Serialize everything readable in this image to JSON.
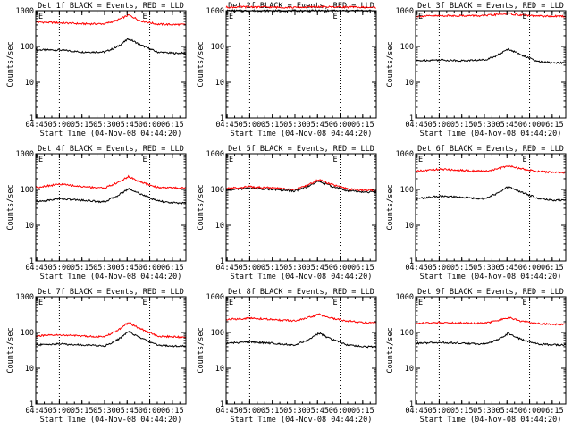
{
  "chart_data": [
    {
      "type": "line",
      "title": "Det 1f BLACK = Events, RED = LLD",
      "xlabel": "Start Time (04-Nov-08 04:44:20)",
      "ylabel": "Counts/sec",
      "x_ticklabels": [
        "04:45",
        "05:00",
        "05:15",
        "05:30",
        "05:45",
        "06:00",
        "06:15"
      ],
      "y_ticklabels": [
        "1",
        "10",
        "100",
        "1000"
      ],
      "marker_labels": [
        "E",
        "E"
      ],
      "yscale": "log",
      "ylim": [
        1,
        1000
      ],
      "xlim": [
        "04:44:20",
        "06:24"
      ],
      "vlines": [
        "05:00",
        "06:00"
      ],
      "series": [
        {
          "color": "#000000",
          "times": [
            "04:45",
            "05:00",
            "05:15",
            "05:30",
            "05:38",
            "05:46",
            "05:54",
            "06:05",
            "06:15",
            "06:23"
          ],
          "values": [
            80,
            80,
            70,
            70,
            95,
            165,
            110,
            70,
            65,
            65
          ]
        },
        {
          "color": "#ff0000",
          "times": [
            "04:45",
            "05:00",
            "05:15",
            "05:30",
            "05:38",
            "05:46",
            "05:54",
            "06:05",
            "06:15",
            "06:23"
          ],
          "values": [
            480,
            460,
            430,
            430,
            530,
            760,
            520,
            420,
            410,
            410
          ]
        }
      ]
    },
    {
      "type": "line",
      "title": "Det 2f BLACK = Events, RED = LLD",
      "xlabel": "Start Time (04-Nov-08 04:44:20)",
      "ylabel": "Counts/sec",
      "x_ticklabels": [
        "04:45",
        "05:00",
        "05:15",
        "05:30",
        "05:45",
        "06:00",
        "06:15"
      ],
      "y_ticklabels": [
        "1",
        "10",
        "100",
        "1000"
      ],
      "marker_labels": [
        "E",
        "E"
      ],
      "yscale": "log",
      "ylim": [
        1,
        1000
      ],
      "xlim": [
        "04:44:20",
        "06:24"
      ],
      "vlines": [
        "05:00",
        "06:00"
      ],
      "series": [
        {
          "color": "#000000",
          "times": [
            "04:45",
            "05:00",
            "05:15",
            "05:30",
            "05:45",
            "06:00",
            "06:15",
            "06:23"
          ],
          "values": [
            1000,
            1000,
            1000,
            1000,
            1000,
            1000,
            1000,
            1000
          ]
        },
        {
          "color": "#ff0000",
          "times": [
            "04:45",
            "05:00",
            "05:15",
            "05:30",
            "05:45",
            "06:00",
            "06:15",
            "06:23"
          ],
          "values": [
            1250,
            1280,
            1250,
            1230,
            1280,
            1270,
            1240,
            1230
          ]
        }
      ]
    },
    {
      "type": "line",
      "title": "Det 3f BLACK = Events, RED = LLD",
      "xlabel": "Start Time (04-Nov-08 04:44:20)",
      "ylabel": "Counts/sec",
      "x_ticklabels": [
        "04:45",
        "05:00",
        "05:15",
        "05:30",
        "05:45",
        "06:00",
        "06:15"
      ],
      "y_ticklabels": [
        "1",
        "10",
        "100",
        "1000"
      ],
      "marker_labels": [
        "E",
        "E"
      ],
      "yscale": "log",
      "ylim": [
        1,
        1000
      ],
      "xlim": [
        "04:44:20",
        "06:24"
      ],
      "vlines": [
        "05:00",
        "06:00"
      ],
      "series": [
        {
          "color": "#000000",
          "times": [
            "04:45",
            "05:00",
            "05:15",
            "05:30",
            "05:38",
            "05:46",
            "05:54",
            "06:05",
            "06:15",
            "06:23"
          ],
          "values": [
            40,
            42,
            40,
            42,
            55,
            85,
            60,
            38,
            35,
            35
          ]
        },
        {
          "color": "#ff0000",
          "times": [
            "04:45",
            "05:00",
            "05:15",
            "05:30",
            "05:38",
            "05:46",
            "05:54",
            "06:05",
            "06:15",
            "06:23"
          ],
          "values": [
            700,
            720,
            730,
            720,
            780,
            830,
            760,
            710,
            700,
            700
          ]
        }
      ]
    },
    {
      "type": "line",
      "title": "Det 4f BLACK = Events, RED = LLD",
      "xlabel": "Start Time (04-Nov-08 04:44:20)",
      "ylabel": "Counts/sec",
      "x_ticklabels": [
        "04:45",
        "05:00",
        "05:15",
        "05:30",
        "05:45",
        "06:00",
        "06:15"
      ],
      "y_ticklabels": [
        "1",
        "10",
        "100",
        "1000"
      ],
      "marker_labels": [
        "E",
        "E"
      ],
      "yscale": "log",
      "ylim": [
        1,
        1000
      ],
      "xlim": [
        "04:44:20",
        "06:24"
      ],
      "vlines": [
        "05:00",
        "06:00"
      ],
      "series": [
        {
          "color": "#000000",
          "times": [
            "04:45",
            "05:00",
            "05:15",
            "05:30",
            "05:38",
            "05:46",
            "05:54",
            "06:05",
            "06:15",
            "06:23"
          ],
          "values": [
            45,
            55,
            50,
            45,
            65,
            105,
            75,
            48,
            42,
            42
          ]
        },
        {
          "color": "#ff0000",
          "times": [
            "04:45",
            "05:00",
            "05:15",
            "05:30",
            "05:38",
            "05:46",
            "05:54",
            "06:05",
            "06:15",
            "06:23"
          ],
          "values": [
            115,
            140,
            120,
            110,
            150,
            230,
            160,
            115,
            110,
            110
          ]
        }
      ]
    },
    {
      "type": "line",
      "title": "Det 5f BLACK = Events, RED = LLD",
      "xlabel": "Start Time (04-Nov-08 04:44:20)",
      "ylabel": "Counts/sec",
      "x_ticklabels": [
        "04:45",
        "05:00",
        "05:15",
        "05:30",
        "05:45",
        "06:00",
        "06:15"
      ],
      "y_ticklabels": [
        "1",
        "10",
        "100",
        "1000"
      ],
      "marker_labels": [
        "E",
        "E"
      ],
      "yscale": "log",
      "ylim": [
        1,
        1000
      ],
      "xlim": [
        "04:44:20",
        "06:24"
      ],
      "vlines": [
        "05:00",
        "06:00"
      ],
      "series": [
        {
          "color": "#000000",
          "times": [
            "04:45",
            "05:00",
            "05:15",
            "05:30",
            "05:38",
            "05:46",
            "05:54",
            "06:05",
            "06:15",
            "06:23"
          ],
          "values": [
            95,
            110,
            100,
            90,
            120,
            170,
            125,
            92,
            85,
            85
          ]
        },
        {
          "color": "#ff0000",
          "times": [
            "04:45",
            "05:00",
            "05:15",
            "05:30",
            "05:38",
            "05:46",
            "05:54",
            "06:05",
            "06:15",
            "06:23"
          ],
          "values": [
            105,
            120,
            110,
            100,
            130,
            190,
            140,
            102,
            95,
            95
          ]
        }
      ]
    },
    {
      "type": "line",
      "title": "Det 6f BLACK = Events, RED = LLD",
      "xlabel": "Start Time (04-Nov-08 04:44:20)",
      "ylabel": "Counts/sec",
      "x_ticklabels": [
        "04:45",
        "05:00",
        "05:15",
        "05:30",
        "05:45",
        "06:00",
        "06:15"
      ],
      "y_ticklabels": [
        "1",
        "10",
        "100",
        "1000"
      ],
      "marker_labels": [
        "E",
        "E"
      ],
      "yscale": "log",
      "ylim": [
        1,
        1000
      ],
      "xlim": [
        "04:44:20",
        "06:24"
      ],
      "vlines": [
        "05:00",
        "06:00"
      ],
      "series": [
        {
          "color": "#000000",
          "times": [
            "04:45",
            "05:00",
            "05:15",
            "05:30",
            "05:38",
            "05:46",
            "05:54",
            "06:05",
            "06:15",
            "06:23"
          ],
          "values": [
            55,
            65,
            60,
            55,
            75,
            120,
            85,
            58,
            50,
            50
          ]
        },
        {
          "color": "#ff0000",
          "times": [
            "04:45",
            "05:00",
            "05:15",
            "05:30",
            "05:38",
            "05:46",
            "05:54",
            "06:05",
            "06:15",
            "06:23"
          ],
          "values": [
            320,
            370,
            340,
            320,
            370,
            460,
            380,
            320,
            300,
            300
          ]
        }
      ]
    },
    {
      "type": "line",
      "title": "Det 7f BLACK = Events, RED = LLD",
      "xlabel": "Start Time (04-Nov-08 04:44:20)",
      "ylabel": "Counts/sec",
      "x_ticklabels": [
        "04:45",
        "05:00",
        "05:15",
        "05:30",
        "05:45",
        "06:00",
        "06:15"
      ],
      "y_ticklabels": [
        "1",
        "10",
        "100",
        "1000"
      ],
      "marker_labels": [
        "E",
        "E"
      ],
      "yscale": "log",
      "ylim": [
        1,
        1000
      ],
      "xlim": [
        "04:44:20",
        "06:24"
      ],
      "vlines": [
        "05:00",
        "06:00"
      ],
      "series": [
        {
          "color": "#000000",
          "times": [
            "04:45",
            "05:00",
            "05:15",
            "05:30",
            "05:38",
            "05:46",
            "05:54",
            "06:05",
            "06:15",
            "06:23"
          ],
          "values": [
            45,
            48,
            45,
            42,
            60,
            105,
            70,
            45,
            42,
            42
          ]
        },
        {
          "color": "#ff0000",
          "times": [
            "04:45",
            "05:00",
            "05:15",
            "05:30",
            "05:38",
            "05:46",
            "05:54",
            "06:05",
            "06:15",
            "06:23"
          ],
          "values": [
            80,
            85,
            80,
            75,
            110,
            190,
            125,
            80,
            75,
            75
          ]
        }
      ]
    },
    {
      "type": "line",
      "title": "Det 8f BLACK = Events, RED = LLD",
      "xlabel": "Start Time (04-Nov-08 04:44:20)",
      "ylabel": "Counts/sec",
      "x_ticklabels": [
        "04:45",
        "05:00",
        "05:15",
        "05:30",
        "05:45",
        "06:00",
        "06:15"
      ],
      "y_ticklabels": [
        "1",
        "10",
        "100",
        "1000"
      ],
      "marker_labels": [
        "E",
        "E"
      ],
      "yscale": "log",
      "ylim": [
        1,
        1000
      ],
      "xlim": [
        "04:44:20",
        "06:24"
      ],
      "vlines": [
        "05:00",
        "06:00"
      ],
      "series": [
        {
          "color": "#000000",
          "times": [
            "04:45",
            "05:00",
            "05:15",
            "05:30",
            "05:38",
            "05:46",
            "05:54",
            "06:05",
            "06:15",
            "06:23"
          ],
          "values": [
            50,
            55,
            50,
            45,
            60,
            95,
            65,
            45,
            40,
            40
          ]
        },
        {
          "color": "#ff0000",
          "times": [
            "04:45",
            "05:00",
            "05:15",
            "05:30",
            "05:38",
            "05:46",
            "05:54",
            "06:05",
            "06:15",
            "06:23"
          ],
          "values": [
            230,
            250,
            230,
            210,
            250,
            320,
            250,
            210,
            190,
            190
          ]
        }
      ]
    },
    {
      "type": "line",
      "title": "Det 9f BLACK = Events, RED = LLD",
      "xlabel": "Start Time (04-Nov-08 04:44:20)",
      "ylabel": "Counts/sec",
      "x_ticklabels": [
        "04:45",
        "05:00",
        "05:15",
        "05:30",
        "05:45",
        "06:00",
        "06:15"
      ],
      "y_ticklabels": [
        "1",
        "10",
        "100",
        "1000"
      ],
      "marker_labels": [
        "E",
        "E"
      ],
      "yscale": "log",
      "ylim": [
        1,
        1000
      ],
      "xlim": [
        "04:44:20",
        "06:24"
      ],
      "vlines": [
        "05:00",
        "06:00"
      ],
      "series": [
        {
          "color": "#000000",
          "times": [
            "04:45",
            "05:00",
            "05:15",
            "05:30",
            "05:38",
            "05:46",
            "05:54",
            "06:05",
            "06:15",
            "06:23"
          ],
          "values": [
            50,
            52,
            50,
            48,
            60,
            95,
            65,
            48,
            45,
            45
          ]
        },
        {
          "color": "#ff0000",
          "times": [
            "04:45",
            "05:00",
            "05:15",
            "05:30",
            "05:38",
            "05:46",
            "05:54",
            "06:05",
            "06:15",
            "06:23"
          ],
          "values": [
            180,
            190,
            185,
            180,
            210,
            260,
            210,
            180,
            170,
            170
          ]
        }
      ]
    }
  ]
}
